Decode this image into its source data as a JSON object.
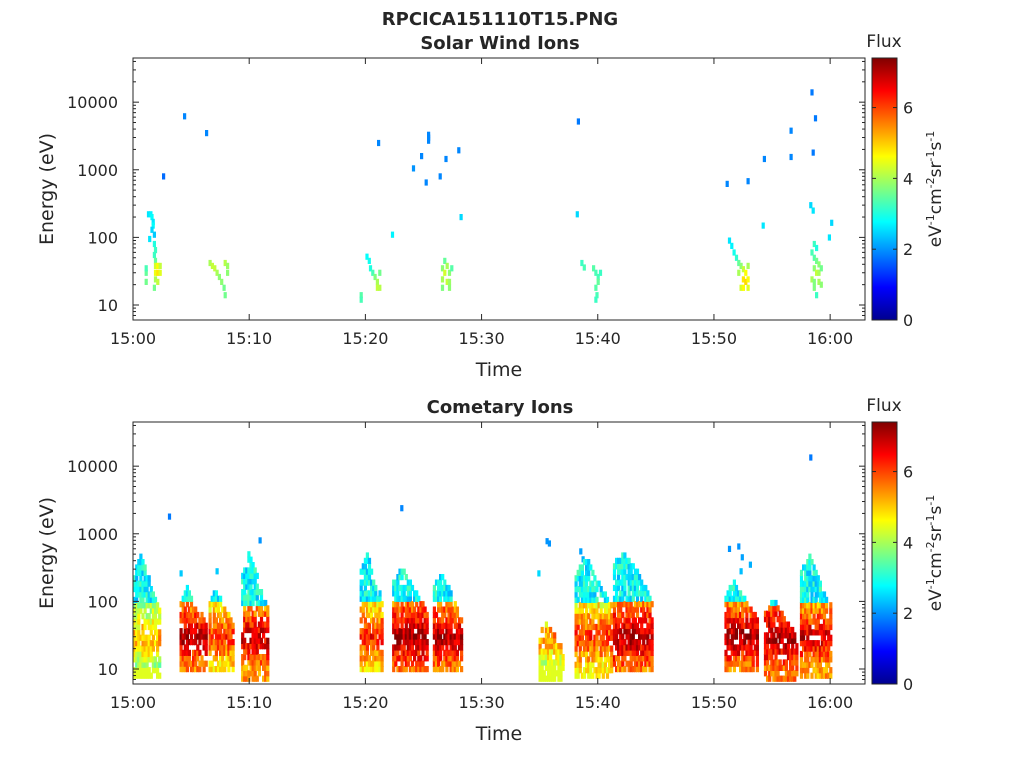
{
  "figure_title": "RPCICA151110T15.PNG",
  "chart_data": [
    {
      "type": "heatmap",
      "title": "Solar Wind Ions",
      "xlabel": "Time",
      "ylabel": "Energy (eV)",
      "x_ticks": [
        "15:00",
        "15:10",
        "15:20",
        "15:30",
        "15:40",
        "15:50",
        "16:00"
      ],
      "x_range_min": [
        0,
        63
      ],
      "y_scale": "log",
      "y_ticks": [
        10,
        100,
        1000,
        10000
      ],
      "y_tick_labels": [
        "10",
        "100",
        "1000",
        "10000"
      ],
      "ylim": [
        6,
        45000
      ],
      "grid": false,
      "colorbar": {
        "label": "Flux",
        "unit_label": "eV-1cm-2sr-1s-1",
        "range": [
          0,
          7.4
        ],
        "ticks": [
          0,
          2,
          4,
          6
        ],
        "tick_labels": [
          "0",
          "2",
          "4",
          "6"
        ],
        "colormap": "jet"
      },
      "points": [
        {
          "t": 1.0,
          "e": 30,
          "v": 3.5
        },
        {
          "t": 1.0,
          "e": 22,
          "v": 3.6
        },
        {
          "t": 1.0,
          "e": 35,
          "v": 3.3
        },
        {
          "t": 1.2,
          "e": 220,
          "v": 2.6
        },
        {
          "t": 1.4,
          "e": 220,
          "v": 2.7
        },
        {
          "t": 1.5,
          "e": 200,
          "v": 2.8
        },
        {
          "t": 1.6,
          "e": 170,
          "v": 2.6
        },
        {
          "t": 1.6,
          "e": 150,
          "v": 2.8
        },
        {
          "t": 1.5,
          "e": 130,
          "v": 2.5
        },
        {
          "t": 1.7,
          "e": 110,
          "v": 2.4
        },
        {
          "t": 1.3,
          "e": 95,
          "v": 2.6
        },
        {
          "t": 1.7,
          "e": 80,
          "v": 3.0
        },
        {
          "t": 1.8,
          "e": 65,
          "v": 3.2
        },
        {
          "t": 1.7,
          "e": 55,
          "v": 3.2
        },
        {
          "t": 1.8,
          "e": 45,
          "v": 3.5
        },
        {
          "t": 1.8,
          "e": 38,
          "v": 4.3
        },
        {
          "t": 2.0,
          "e": 38,
          "v": 4.6
        },
        {
          "t": 2.2,
          "e": 38,
          "v": 4.2
        },
        {
          "t": 1.8,
          "e": 30,
          "v": 4.5
        },
        {
          "t": 2.0,
          "e": 30,
          "v": 4.8
        },
        {
          "t": 2.2,
          "e": 30,
          "v": 4.4
        },
        {
          "t": 1.8,
          "e": 24,
          "v": 4.0
        },
        {
          "t": 2.0,
          "e": 22,
          "v": 4.2
        },
        {
          "t": 1.7,
          "e": 18,
          "v": 3.6
        },
        {
          "t": 2.5,
          "e": 800,
          "v": 1.7
        },
        {
          "t": 4.3,
          "e": 6200,
          "v": 1.9
        },
        {
          "t": 6.2,
          "e": 3500,
          "v": 1.9
        },
        {
          "t": 6.5,
          "e": 42,
          "v": 4.0
        },
        {
          "t": 6.7,
          "e": 38,
          "v": 4.2
        },
        {
          "t": 6.9,
          "e": 35,
          "v": 4.2
        },
        {
          "t": 7.1,
          "e": 30,
          "v": 4.0
        },
        {
          "t": 7.3,
          "e": 26,
          "v": 3.8
        },
        {
          "t": 7.5,
          "e": 22,
          "v": 3.8
        },
        {
          "t": 7.7,
          "e": 18,
          "v": 3.6
        },
        {
          "t": 7.8,
          "e": 14,
          "v": 3.6
        },
        {
          "t": 7.8,
          "e": 42,
          "v": 4.1
        },
        {
          "t": 8.0,
          "e": 38,
          "v": 3.9
        },
        {
          "t": 8.0,
          "e": 30,
          "v": 3.8
        },
        {
          "t": 19.5,
          "e": 14,
          "v": 3.4
        },
        {
          "t": 19.5,
          "e": 12,
          "v": 3.3
        },
        {
          "t": 20.0,
          "e": 52,
          "v": 2.8
        },
        {
          "t": 20.2,
          "e": 45,
          "v": 2.9
        },
        {
          "t": 20.3,
          "e": 35,
          "v": 3.0
        },
        {
          "t": 20.5,
          "e": 30,
          "v": 3.3
        },
        {
          "t": 20.7,
          "e": 26,
          "v": 3.7
        },
        {
          "t": 20.9,
          "e": 22,
          "v": 4.0
        },
        {
          "t": 21.1,
          "e": 30,
          "v": 3.6
        },
        {
          "t": 20.9,
          "e": 18,
          "v": 4.2
        },
        {
          "t": 21.1,
          "e": 18,
          "v": 4.1
        },
        {
          "t": 21.0,
          "e": 2500,
          "v": 1.9
        },
        {
          "t": 22.2,
          "e": 110,
          "v": 2.7
        },
        {
          "t": 24.0,
          "e": 1050,
          "v": 2.0
        },
        {
          "t": 24.7,
          "e": 1600,
          "v": 1.9
        },
        {
          "t": 25.1,
          "e": 650,
          "v": 1.9
        },
        {
          "t": 25.3,
          "e": 3300,
          "v": 1.9
        },
        {
          "t": 25.3,
          "e": 3000,
          "v": 1.9
        },
        {
          "t": 25.3,
          "e": 2700,
          "v": 1.9
        },
        {
          "t": 26.3,
          "e": 800,
          "v": 1.9
        },
        {
          "t": 26.8,
          "e": 1450,
          "v": 1.9
        },
        {
          "t": 27.9,
          "e": 1950,
          "v": 1.9
        },
        {
          "t": 28.1,
          "e": 200,
          "v": 2.5
        },
        {
          "t": 26.5,
          "e": 35,
          "v": 3.8
        },
        {
          "t": 26.7,
          "e": 45,
          "v": 3.5
        },
        {
          "t": 26.7,
          "e": 30,
          "v": 4.3
        },
        {
          "t": 26.9,
          "e": 38,
          "v": 4.0
        },
        {
          "t": 26.5,
          "e": 24,
          "v": 4.0
        },
        {
          "t": 26.9,
          "e": 22,
          "v": 4.2
        },
        {
          "t": 27.1,
          "e": 30,
          "v": 3.8
        },
        {
          "t": 27.1,
          "e": 22,
          "v": 3.9
        },
        {
          "t": 26.5,
          "e": 18,
          "v": 3.7
        },
        {
          "t": 27.1,
          "e": 18,
          "v": 3.8
        },
        {
          "t": 27.3,
          "e": 35,
          "v": 3.4
        },
        {
          "t": 38.2,
          "e": 5200,
          "v": 1.8
        },
        {
          "t": 38.1,
          "e": 220,
          "v": 2.5
        },
        {
          "t": 38.5,
          "e": 42,
          "v": 3.2
        },
        {
          "t": 38.7,
          "e": 36,
          "v": 3.3
        },
        {
          "t": 39.5,
          "e": 35,
          "v": 3.4
        },
        {
          "t": 39.7,
          "e": 30,
          "v": 3.3
        },
        {
          "t": 39.9,
          "e": 26,
          "v": 3.3
        },
        {
          "t": 39.9,
          "e": 22,
          "v": 3.5
        },
        {
          "t": 39.7,
          "e": 18,
          "v": 3.4
        },
        {
          "t": 39.8,
          "e": 14,
          "v": 3.3
        },
        {
          "t": 39.7,
          "e": 12,
          "v": 3.2
        },
        {
          "t": 40.1,
          "e": 30,
          "v": 3.2
        },
        {
          "t": 51.0,
          "e": 620,
          "v": 1.9
        },
        {
          "t": 52.8,
          "e": 680,
          "v": 1.9
        },
        {
          "t": 54.2,
          "e": 1450,
          "v": 1.9
        },
        {
          "t": 56.5,
          "e": 3800,
          "v": 1.9
        },
        {
          "t": 56.5,
          "e": 1550,
          "v": 1.9
        },
        {
          "t": 54.1,
          "e": 150,
          "v": 2.6
        },
        {
          "t": 51.2,
          "e": 90,
          "v": 2.6
        },
        {
          "t": 51.4,
          "e": 75,
          "v": 2.7
        },
        {
          "t": 51.6,
          "e": 60,
          "v": 2.9
        },
        {
          "t": 51.8,
          "e": 50,
          "v": 3.1
        },
        {
          "t": 52.0,
          "e": 42,
          "v": 3.5
        },
        {
          "t": 52.2,
          "e": 38,
          "v": 3.8
        },
        {
          "t": 52.4,
          "e": 34,
          "v": 4.2
        },
        {
          "t": 52.6,
          "e": 30,
          "v": 4.6
        },
        {
          "t": 52.8,
          "e": 38,
          "v": 4.0
        },
        {
          "t": 52.4,
          "e": 24,
          "v": 4.8
        },
        {
          "t": 52.6,
          "e": 22,
          "v": 4.9
        },
        {
          "t": 52.8,
          "e": 24,
          "v": 4.6
        },
        {
          "t": 52.2,
          "e": 18,
          "v": 4.3
        },
        {
          "t": 52.4,
          "e": 18,
          "v": 4.6
        },
        {
          "t": 52.8,
          "e": 18,
          "v": 4.4
        },
        {
          "t": 52.0,
          "e": 30,
          "v": 4.0
        },
        {
          "t": 58.3,
          "e": 14000,
          "v": 1.8
        },
        {
          "t": 58.6,
          "e": 5800,
          "v": 1.8
        },
        {
          "t": 58.4,
          "e": 1800,
          "v": 1.8
        },
        {
          "t": 58.2,
          "e": 300,
          "v": 2.5
        },
        {
          "t": 58.4,
          "e": 250,
          "v": 2.6
        },
        {
          "t": 59.8,
          "e": 100,
          "v": 2.6
        },
        {
          "t": 60.0,
          "e": 165,
          "v": 2.5
        },
        {
          "t": 58.5,
          "e": 80,
          "v": 3.2
        },
        {
          "t": 58.7,
          "e": 70,
          "v": 3.0
        },
        {
          "t": 58.3,
          "e": 60,
          "v": 3.3
        },
        {
          "t": 58.5,
          "e": 50,
          "v": 3.4
        },
        {
          "t": 58.7,
          "e": 45,
          "v": 3.6
        },
        {
          "t": 58.9,
          "e": 40,
          "v": 3.8
        },
        {
          "t": 58.5,
          "e": 35,
          "v": 3.8
        },
        {
          "t": 58.7,
          "e": 30,
          "v": 4.2
        },
        {
          "t": 58.9,
          "e": 30,
          "v": 4.0
        },
        {
          "t": 59.1,
          "e": 35,
          "v": 3.6
        },
        {
          "t": 58.3,
          "e": 24,
          "v": 4.0
        },
        {
          "t": 58.5,
          "e": 22,
          "v": 3.7
        },
        {
          "t": 58.9,
          "e": 22,
          "v": 4.0
        },
        {
          "t": 58.5,
          "e": 18,
          "v": 3.7
        },
        {
          "t": 59.1,
          "e": 20,
          "v": 3.8
        },
        {
          "t": 58.7,
          "e": 14,
          "v": 3.2
        }
      ]
    },
    {
      "type": "heatmap",
      "title": "Cometary Ions",
      "xlabel": "Time",
      "ylabel": "Energy (eV)",
      "x_ticks": [
        "15:00",
        "15:10",
        "15:20",
        "15:30",
        "15:40",
        "15:50",
        "16:00"
      ],
      "x_range_min": [
        0,
        63
      ],
      "y_scale": "log",
      "y_ticks": [
        10,
        100,
        1000,
        10000
      ],
      "y_tick_labels": [
        "10",
        "100",
        "1000",
        "10000"
      ],
      "ylim": [
        6,
        45000
      ],
      "grid": false,
      "colorbar": {
        "label": "Flux",
        "unit_label": "eV-1cm-2sr-1s-1",
        "range": [
          0,
          7.4
        ],
        "ticks": [
          0,
          2,
          4,
          6
        ],
        "tick_labels": [
          "0",
          "2",
          "4",
          "6"
        ],
        "colormap": "jet"
      },
      "points": [
        {
          "t": 3.0,
          "e": 1800,
          "v": 1.8
        },
        {
          "t": 23.0,
          "e": 2400,
          "v": 1.9
        },
        {
          "t": 58.2,
          "e": 13500,
          "v": 1.8
        },
        {
          "t": 10.8,
          "e": 800,
          "v": 2.0
        },
        {
          "t": 35.5,
          "e": 780,
          "v": 2.0
        },
        {
          "t": 35.7,
          "e": 720,
          "v": 2.0
        },
        {
          "t": 4.0,
          "e": 260,
          "v": 2.4
        },
        {
          "t": 7.1,
          "e": 280,
          "v": 2.4
        },
        {
          "t": 9.5,
          "e": 120,
          "v": 2.8
        },
        {
          "t": 34.8,
          "e": 260,
          "v": 2.5
        },
        {
          "t": 38.4,
          "e": 550,
          "v": 2.1
        },
        {
          "t": 38.6,
          "e": 420,
          "v": 2.2
        },
        {
          "t": 51.2,
          "e": 600,
          "v": 2.0
        },
        {
          "t": 52.0,
          "e": 650,
          "v": 2.0
        },
        {
          "t": 52.3,
          "e": 450,
          "v": 2.1
        },
        {
          "t": 53.0,
          "e": 350,
          "v": 2.2
        },
        {
          "t": 52.2,
          "e": 280,
          "v": 2.3
        }
      ],
      "bursts": [
        {
          "t0": 0.0,
          "t1": 2.2,
          "lo": 8,
          "hi": 480,
          "peak": 5.3
        },
        {
          "t0": 4.0,
          "t1": 6.2,
          "lo": 10,
          "hi": 160,
          "peak": 7.0
        },
        {
          "t0": 6.5,
          "t1": 8.6,
          "lo": 10,
          "hi": 150,
          "peak": 6.2
        },
        {
          "t0": 9.3,
          "t1": 11.6,
          "lo": 6,
          "hi": 520,
          "peak": 6.9
        },
        {
          "t0": 19.5,
          "t1": 21.4,
          "lo": 10,
          "hi": 550,
          "peak": 6.3
        },
        {
          "t0": 22.3,
          "t1": 25.2,
          "lo": 10,
          "hi": 320,
          "peak": 7.2
        },
        {
          "t0": 25.8,
          "t1": 28.2,
          "lo": 10,
          "hi": 280,
          "peak": 7.0
        },
        {
          "t0": 34.9,
          "t1": 37.0,
          "lo": 6,
          "hi": 50,
          "peak": 5.5
        },
        {
          "t0": 38.0,
          "t1": 41.2,
          "lo": 8,
          "hi": 480,
          "peak": 6.2
        },
        {
          "t0": 41.3,
          "t1": 44.6,
          "lo": 10,
          "hi": 650,
          "peak": 7.1
        },
        {
          "t0": 50.9,
          "t1": 53.7,
          "lo": 10,
          "hi": 200,
          "peak": 7.1
        },
        {
          "t0": 54.3,
          "t1": 57.0,
          "lo": 6,
          "hi": 110,
          "peak": 7.2
        },
        {
          "t0": 57.4,
          "t1": 60.0,
          "lo": 8,
          "hi": 500,
          "peak": 6.8
        }
      ]
    }
  ]
}
